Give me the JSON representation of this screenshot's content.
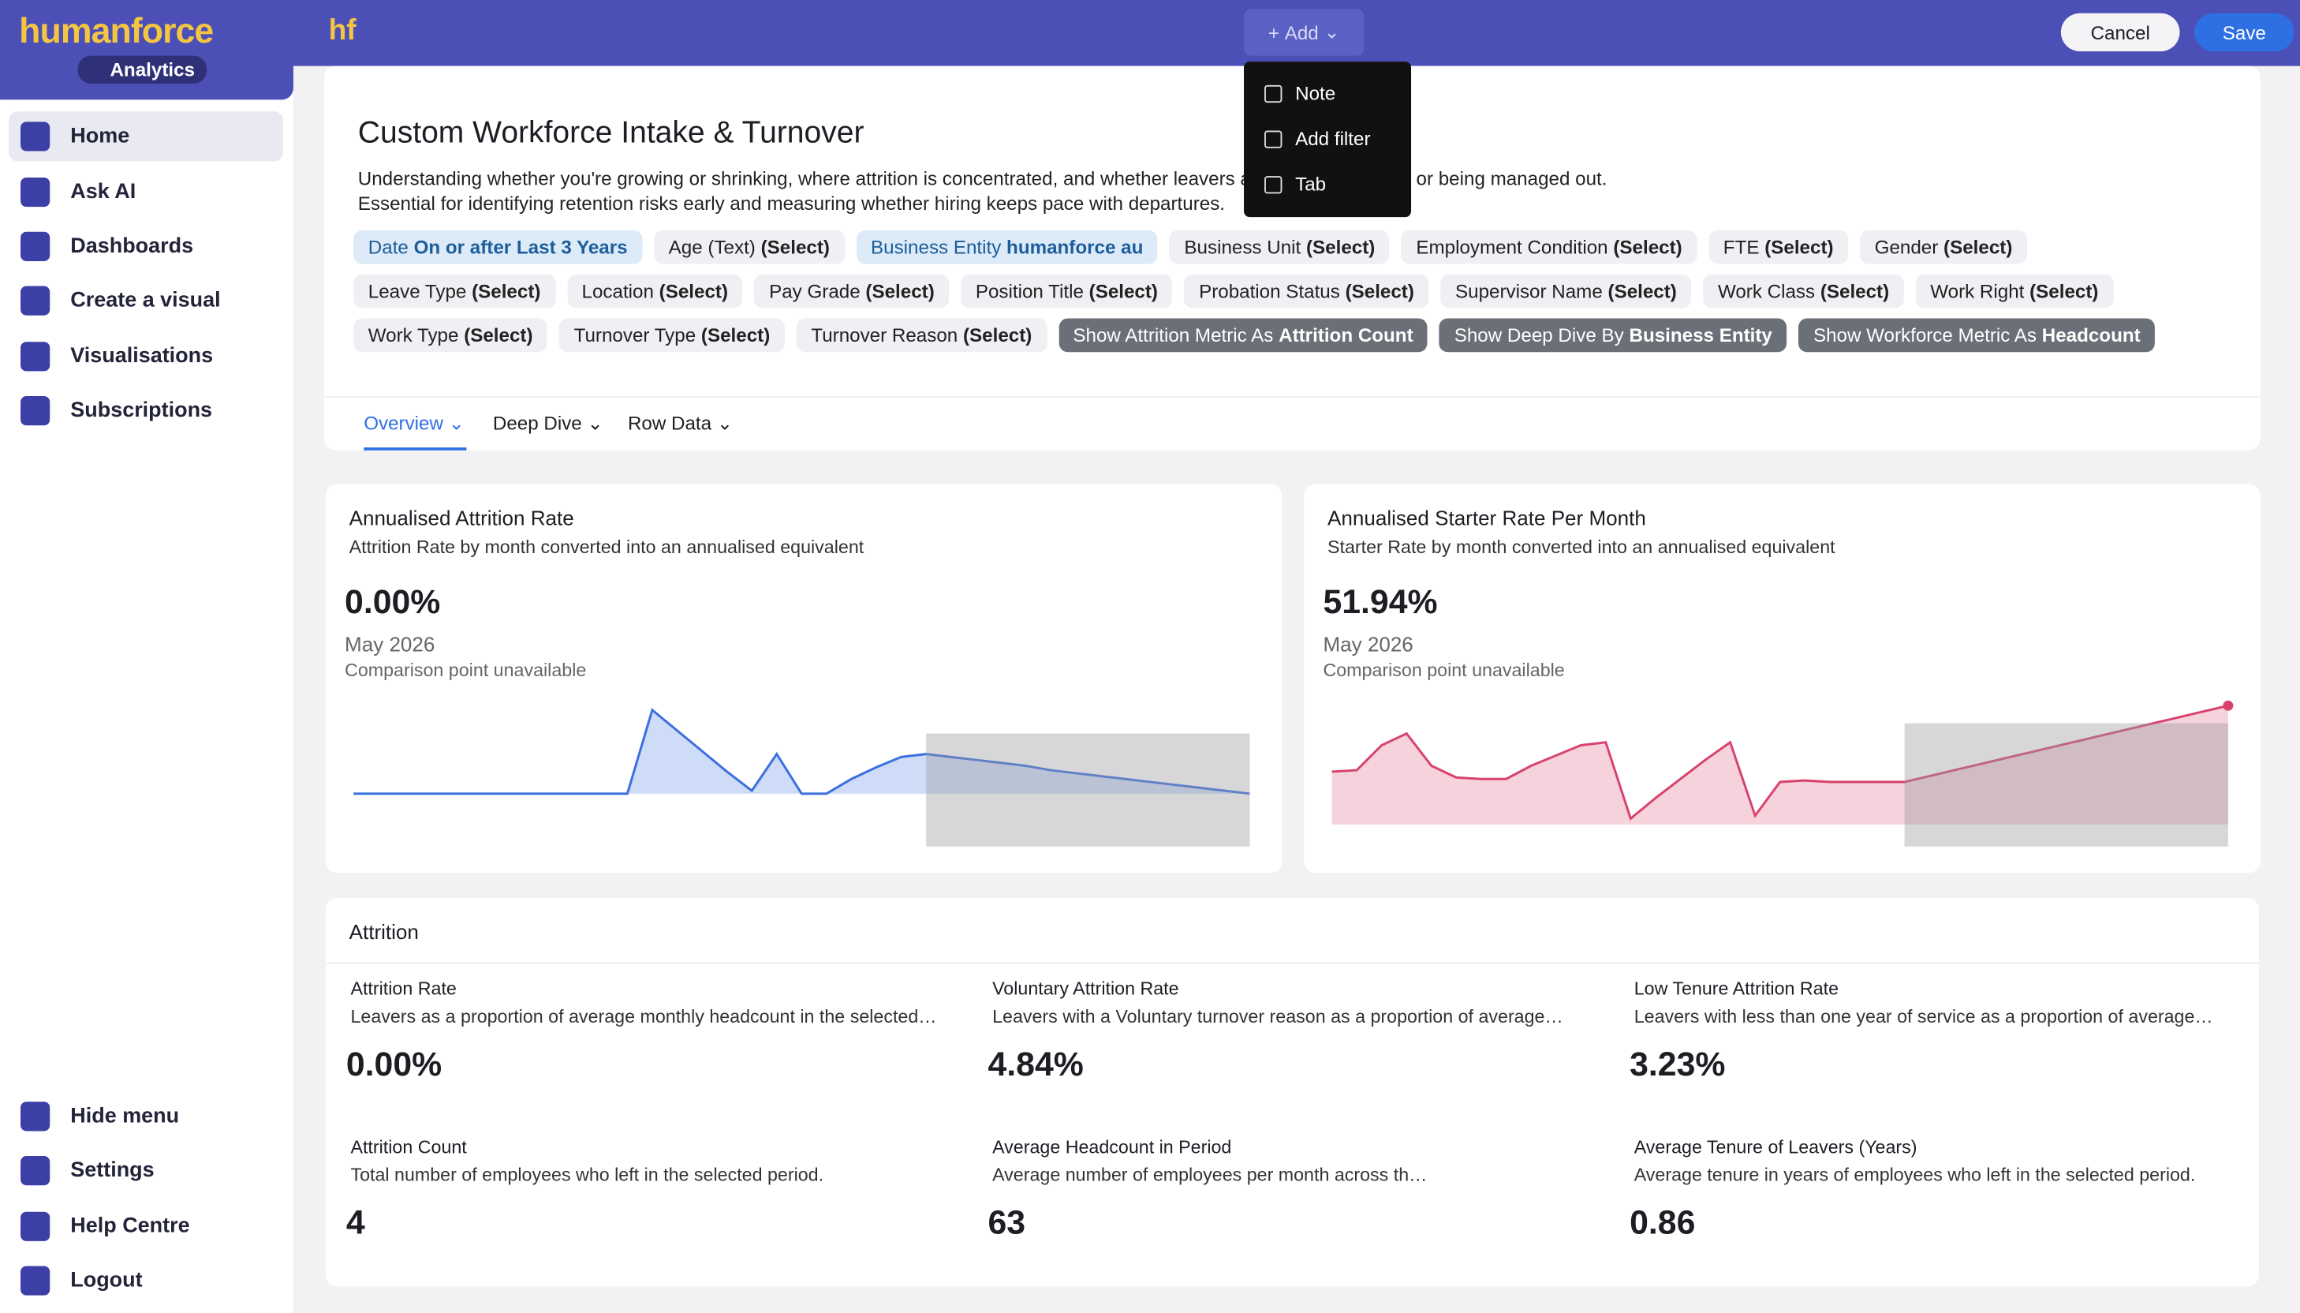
{
  "sidebar": {
    "brand": "humanforce",
    "badge": "Analytics",
    "nav": [
      "Home",
      "Ask AI",
      "Dashboards",
      "Create a visual",
      "Visualisations",
      "Subscriptions"
    ],
    "bottom": [
      "Hide menu",
      "Settings",
      "Help Centre",
      "Logout"
    ]
  },
  "topbar": {
    "logo": "hf",
    "add": "Add",
    "cancel": "Cancel",
    "save": "Save",
    "menu": [
      "Note",
      "Add filter",
      "Tab"
    ]
  },
  "header": {
    "title": "Custom Workforce Intake & Turnover",
    "description": [
      "Understanding whether you're growing or shrinking, where attrition is concentrated, and whether leavers are going voluntarily or being managed out.",
      "Essential for identifying retention risks early and measuring whether hiring keeps pace with departures."
    ],
    "filters": [
      {
        "label": "Date",
        "value": "On or after Last 3 Years",
        "style": "active"
      },
      {
        "label": "Age (Text)",
        "value": "(Select)",
        "style": "plain"
      },
      {
        "label": "Business Entity",
        "value": "humanforce au",
        "style": "active"
      },
      {
        "label": "Business Unit",
        "value": "(Select)",
        "style": "plain"
      },
      {
        "label": "Employment Condition",
        "value": "(Select)",
        "style": "plain"
      },
      {
        "label": "FTE",
        "value": "(Select)",
        "style": "plain"
      },
      {
        "label": "Gender",
        "value": "(Select)",
        "style": "plain"
      },
      {
        "label": "Leave Type",
        "value": "(Select)",
        "style": "plain"
      },
      {
        "label": "Location",
        "value": "(Select)",
        "style": "plain"
      },
      {
        "label": "Pay Grade",
        "value": "(Select)",
        "style": "plain"
      },
      {
        "label": "Position Title",
        "value": "(Select)",
        "style": "plain"
      },
      {
        "label": "Probation Status",
        "value": "(Select)",
        "style": "plain"
      },
      {
        "label": "Supervisor Name",
        "value": "(Select)",
        "style": "plain"
      },
      {
        "label": "Work Class",
        "value": "(Select)",
        "style": "plain"
      },
      {
        "label": "Work Right",
        "value": "(Select)",
        "style": "plain"
      },
      {
        "label": "Work Type",
        "value": "(Select)",
        "style": "plain"
      },
      {
        "label": "Turnover Type",
        "value": "(Select)",
        "style": "plain"
      },
      {
        "label": "Turnover Reason",
        "value": "(Select)",
        "style": "plain"
      },
      {
        "label": "Show Attrition Metric As",
        "value": "Attrition Count",
        "style": "dark"
      },
      {
        "label": "Show Deep Dive By",
        "value": "Business Entity",
        "style": "dark"
      },
      {
        "label": "Show Workforce Metric As",
        "value": "Headcount",
        "style": "dark"
      }
    ],
    "tabs": [
      "Overview",
      "Deep Dive",
      "Row Data"
    ]
  },
  "cards": [
    {
      "title": "Annualised Attrition Rate",
      "subtitle": "Attrition Rate by month converted into an annualised equivalent",
      "value": "0.00%",
      "period": "May 2026",
      "note": "Comparison point unavailable",
      "color": "#3b6fe0",
      "fill": "#cfdcf8",
      "ylim": [
        0,
        60
      ],
      "forecast_from": 23,
      "spark": [
        0,
        0,
        0,
        0,
        0,
        0,
        0,
        0,
        0,
        0,
        0,
        0,
        57,
        43,
        29,
        15,
        2,
        27,
        0,
        0,
        10,
        18,
        25,
        27,
        25,
        23,
        21,
        19,
        16,
        14,
        12,
        10,
        8,
        6,
        4,
        2,
        0
      ]
    },
    {
      "title": "Annualised Starter Rate Per Month",
      "subtitle": "Starter Rate by month converted into an annualised equivalent",
      "value": "51.94%",
      "period": "May 2026",
      "note": "Comparison point unavailable",
      "color": "#d8436e",
      "fill": "#f6d2dc",
      "ylim": [
        0,
        90
      ],
      "forecast_from": 23,
      "spark": [
        36,
        37,
        54,
        62,
        40,
        32,
        31,
        31,
        40,
        47,
        54,
        56,
        4,
        18,
        31,
        44,
        56,
        6,
        29,
        30,
        29,
        29,
        29,
        29,
        33,
        37,
        41,
        45,
        49,
        53,
        57,
        61,
        65,
        69,
        73,
        77,
        81
      ]
    }
  ],
  "attrition": {
    "title": "Attrition",
    "metrics": [
      {
        "name": "Attrition Rate",
        "desc": "Leavers as a proportion of average monthly headcount in the selected…",
        "value": "0.00%"
      },
      {
        "name": "Voluntary Attrition Rate",
        "desc": "Leavers with a Voluntary turnover reason as a proportion of average…",
        "value": "4.84%"
      },
      {
        "name": "Low Tenure Attrition Rate",
        "desc": "Leavers with less than one year of service as a proportion of average…",
        "value": "3.23%"
      },
      {
        "name": "Attrition Count",
        "desc": "Total number of employees who left in the selected period.",
        "value": "4"
      },
      {
        "name": "Average Headcount in Period",
        "desc": "Average number of employees per month across th…",
        "value": "63"
      },
      {
        "name": "Average Tenure of Leavers (Years)",
        "desc": "Average tenure in years of employees who left in the selected period.",
        "value": "0.86"
      }
    ]
  }
}
